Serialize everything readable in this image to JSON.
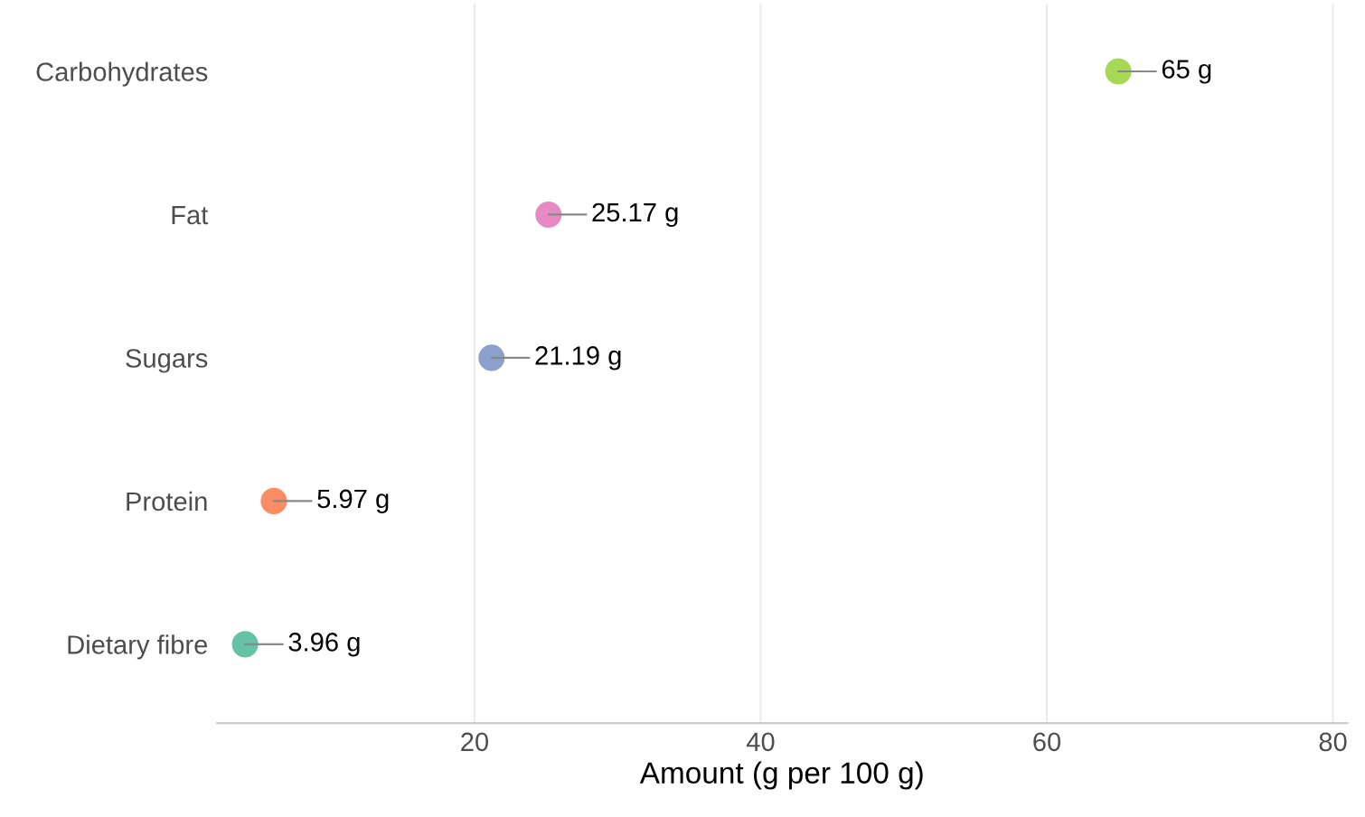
{
  "chart_data": {
    "type": "scatter",
    "orientation": "horizontal",
    "xlabel": "Amount (g per 100 g)",
    "categories": [
      "Carbohydrates",
      "Fat",
      "Sugars",
      "Protein",
      "Dietary fibre"
    ],
    "values": [
      65,
      25.17,
      21.19,
      5.97,
      3.96
    ],
    "colors": [
      "#a6d854",
      "#e78ac3",
      "#8da0cb",
      "#fc8d62",
      "#66c2a5"
    ],
    "value_labels": [
      "65 g",
      "25.17 g",
      "21.19 g",
      "5.97 g",
      "3.96 g"
    ],
    "xlim": [
      2,
      81
    ],
    "xticks": [
      20,
      40,
      60,
      80
    ],
    "grid": "x",
    "marker": "circle"
  }
}
